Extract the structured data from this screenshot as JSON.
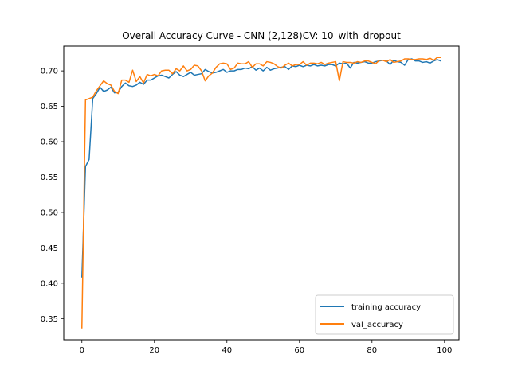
{
  "chart_data": {
    "type": "line",
    "title": "Overall Accuracy Curve - CNN (2,128)CV: 10_with_dropout",
    "xlabel": "",
    "ylabel": "",
    "xlim": [
      -5,
      104
    ],
    "ylim": [
      0.32,
      0.735
    ],
    "xticks": [
      0,
      20,
      40,
      60,
      80,
      100
    ],
    "yticks": [
      0.35,
      0.4,
      0.45,
      0.5,
      0.55,
      0.6,
      0.65,
      0.7
    ],
    "grid": false,
    "legend_position": "lower-right",
    "colors": {
      "training accuracy": "#1f77b4",
      "val_accuracy": "#ff7f0e"
    },
    "x": [
      0,
      1,
      2,
      3,
      4,
      5,
      6,
      7,
      8,
      9,
      10,
      11,
      12,
      13,
      14,
      15,
      16,
      17,
      18,
      19,
      20,
      21,
      22,
      23,
      24,
      25,
      26,
      27,
      28,
      29,
      30,
      31,
      32,
      33,
      34,
      35,
      36,
      37,
      38,
      39,
      40,
      41,
      42,
      43,
      44,
      45,
      46,
      47,
      48,
      49,
      50,
      51,
      52,
      53,
      54,
      55,
      56,
      57,
      58,
      59,
      60,
      61,
      62,
      63,
      64,
      65,
      66,
      67,
      68,
      69,
      70,
      71,
      72,
      73,
      74,
      75,
      76,
      77,
      78,
      79,
      80,
      81,
      82,
      83,
      84,
      85,
      86,
      87,
      88,
      89,
      90,
      91,
      92,
      93,
      94,
      95,
      96,
      97,
      98,
      99
    ],
    "series": [
      {
        "name": "training accuracy",
        "values": [
          0.408,
          0.565,
          0.575,
          0.661,
          0.668,
          0.677,
          0.671,
          0.673,
          0.677,
          0.669,
          0.67,
          0.678,
          0.683,
          0.679,
          0.678,
          0.68,
          0.684,
          0.681,
          0.687,
          0.687,
          0.69,
          0.693,
          0.694,
          0.692,
          0.69,
          0.695,
          0.699,
          0.694,
          0.692,
          0.695,
          0.698,
          0.694,
          0.695,
          0.696,
          0.702,
          0.699,
          0.697,
          0.698,
          0.7,
          0.702,
          0.698,
          0.7,
          0.7,
          0.702,
          0.702,
          0.704,
          0.703,
          0.706,
          0.701,
          0.704,
          0.7,
          0.705,
          0.701,
          0.703,
          0.704,
          0.705,
          0.706,
          0.702,
          0.707,
          0.706,
          0.708,
          0.706,
          0.708,
          0.707,
          0.709,
          0.707,
          0.708,
          0.707,
          0.709,
          0.709,
          0.707,
          0.711,
          0.71,
          0.711,
          0.704,
          0.712,
          0.711,
          0.712,
          0.713,
          0.711,
          0.711,
          0.713,
          0.714,
          0.715,
          0.714,
          0.709,
          0.715,
          0.713,
          0.712,
          0.708,
          0.716,
          0.717,
          0.714,
          0.714,
          0.712,
          0.713,
          0.711,
          0.714,
          0.716,
          0.714
        ]
      },
      {
        "name": "val_accuracy",
        "values": [
          0.336,
          0.659,
          0.661,
          0.663,
          0.672,
          0.679,
          0.686,
          0.682,
          0.68,
          0.671,
          0.668,
          0.687,
          0.687,
          0.684,
          0.701,
          0.685,
          0.692,
          0.683,
          0.695,
          0.693,
          0.695,
          0.693,
          0.7,
          0.701,
          0.701,
          0.696,
          0.703,
          0.7,
          0.707,
          0.7,
          0.702,
          0.708,
          0.707,
          0.7,
          0.686,
          0.693,
          0.697,
          0.705,
          0.71,
          0.711,
          0.71,
          0.702,
          0.704,
          0.711,
          0.71,
          0.71,
          0.713,
          0.705,
          0.71,
          0.71,
          0.707,
          0.713,
          0.712,
          0.71,
          0.706,
          0.704,
          0.708,
          0.711,
          0.707,
          0.709,
          0.709,
          0.713,
          0.708,
          0.711,
          0.711,
          0.71,
          0.712,
          0.709,
          0.711,
          0.712,
          0.713,
          0.686,
          0.713,
          0.712,
          0.712,
          0.711,
          0.713,
          0.712,
          0.714,
          0.714,
          0.712,
          0.71,
          0.715,
          0.715,
          0.713,
          0.716,
          0.712,
          0.713,
          0.714,
          0.717,
          0.717,
          0.716,
          0.716,
          0.717,
          0.717,
          0.716,
          0.718,
          0.715,
          0.719,
          0.719
        ]
      }
    ]
  }
}
